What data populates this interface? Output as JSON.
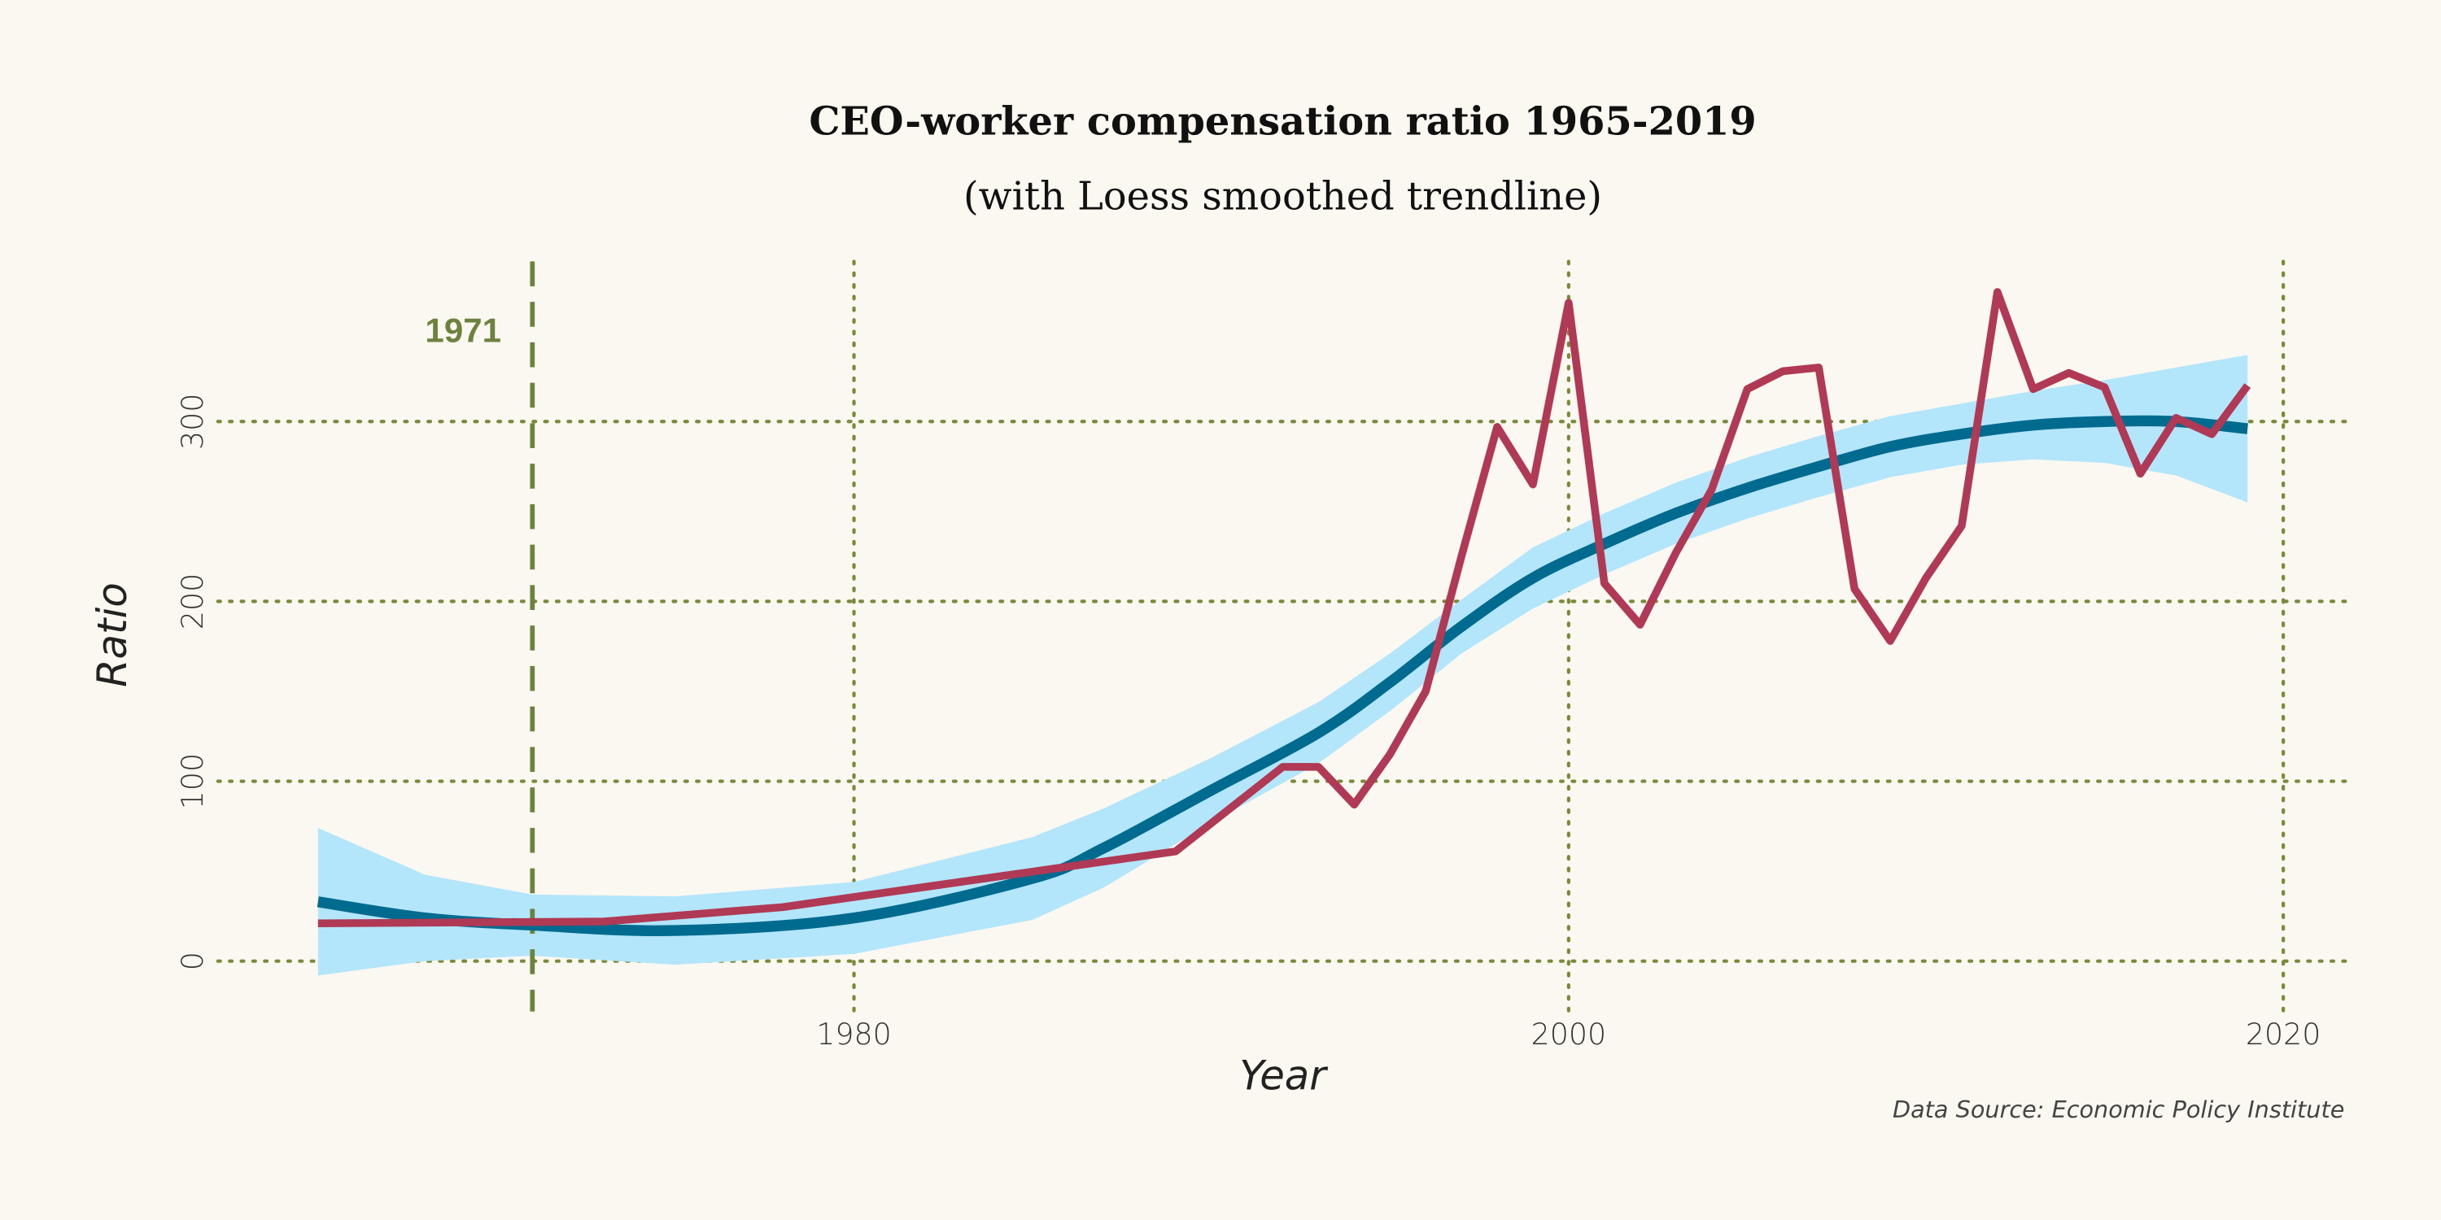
{
  "chart_data": {
    "type": "line",
    "title": "CEO-worker compensation ratio 1965-2019",
    "subtitle": "(with Loess smoothed trendline)",
    "x_label": "Year",
    "y_label": "Ratio",
    "caption": "Data Source: Economic Policy Institute",
    "x": [
      1965,
      1973,
      1978,
      1989,
      1992,
      1993,
      1994,
      1995,
      1996,
      1997,
      1998,
      1999,
      2000,
      2001,
      2002,
      2003,
      2004,
      2005,
      2006,
      2007,
      2008,
      2009,
      2010,
      2011,
      2012,
      2013,
      2014,
      2015,
      2016,
      2017,
      2018,
      2019
    ],
    "values": [
      21,
      22,
      30,
      61,
      108,
      108,
      87,
      115,
      150,
      225,
      297,
      265,
      366,
      210,
      187,
      227,
      262,
      318,
      328,
      330,
      207,
      178,
      213,
      242,
      372,
      318,
      327,
      319,
      271,
      302,
      293,
      320
    ],
    "color": "#b03a55",
    "trend": {
      "x": [
        1965,
        1968,
        1971,
        1975,
        1980,
        1985,
        1987,
        1990,
        1993,
        1995,
        1997,
        1999,
        2001,
        2003,
        2005,
        2007,
        2009,
        2011,
        2013,
        2015,
        2017,
        2019
      ],
      "values": [
        33,
        24,
        20,
        17,
        24,
        46,
        63,
        95,
        127,
        155,
        186,
        213,
        232,
        249,
        263,
        275,
        286,
        293,
        298,
        300,
        300,
        296
      ],
      "lower": [
        -8,
        0,
        3,
        -2,
        4,
        23,
        41,
        77,
        110,
        139,
        171,
        196,
        215,
        232,
        246,
        258,
        269,
        276,
        279,
        277,
        270,
        255
      ],
      "upper": [
        74,
        48,
        37,
        36,
        44,
        69,
        85,
        113,
        144,
        171,
        201,
        230,
        249,
        266,
        280,
        292,
        303,
        310,
        317,
        323,
        330,
        337
      ],
      "color": "#006b8f",
      "band_color": "#b3e5fb"
    },
    "annotation": {
      "text": "1971",
      "x": 1971,
      "color": "#6e8240"
    },
    "xlim": [
      1962.2,
      2021.8
    ],
    "ylim": [
      -28,
      389
    ],
    "xticks": [
      1980,
      2000,
      2020
    ],
    "yticks": [
      0,
      100,
      200,
      300
    ],
    "grid": true,
    "grid_color": "#7a8a3a"
  }
}
